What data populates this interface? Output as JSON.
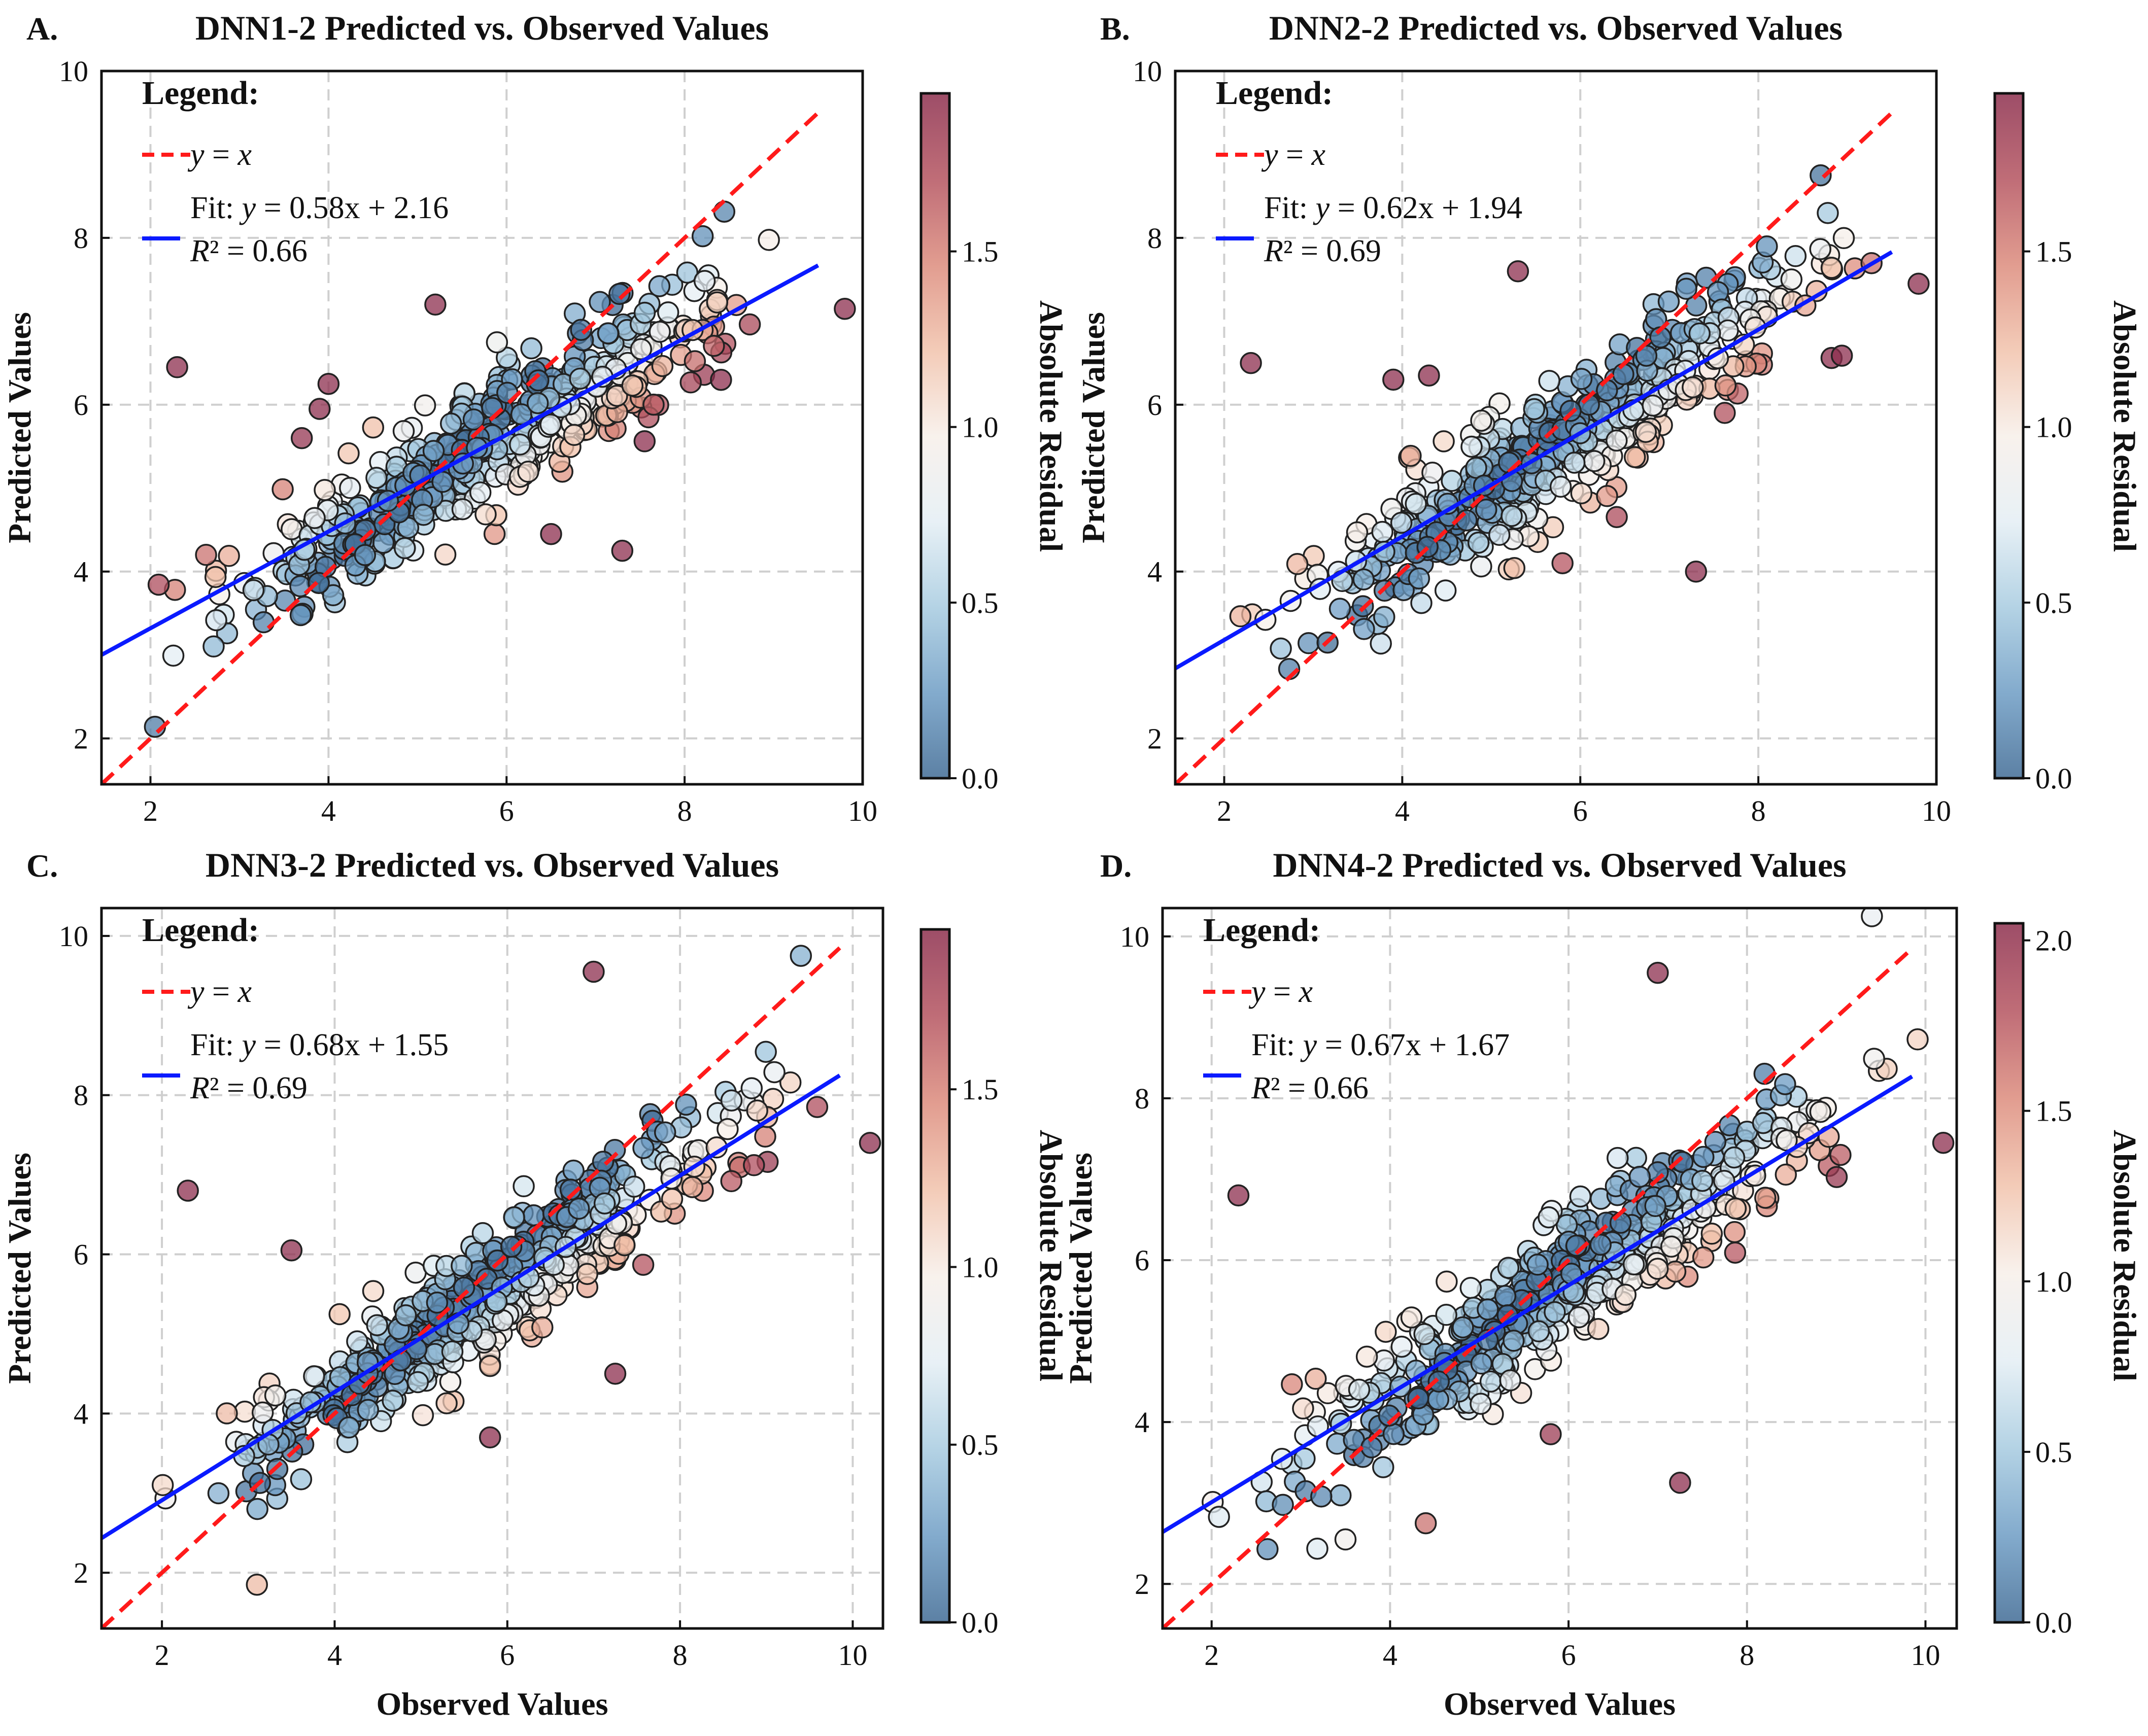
{
  "colorbar_palette": [
    "#3f6a94",
    "#6d9cc4",
    "#a7cbe0",
    "#e4eef4",
    "#f7efe9",
    "#f1c2ab",
    "#dc8b7c",
    "#b4535f",
    "#8c2e4d"
  ],
  "colors": {
    "identity": "#ff1a1a",
    "fit": "#0a1aff",
    "grid": "#cfcfcf"
  },
  "chart_data": [
    {
      "type": "scatter",
      "letter": "A.",
      "title": "DNN1-2 Predicted vs. Observed Values",
      "xlabel": "",
      "ylabel": "Predicted Values",
      "xlim": [
        1.45,
        10.0
      ],
      "ylim": [
        1.45,
        10.0
      ],
      "xticks": [
        "2",
        "4",
        "6",
        "8",
        "10"
      ],
      "yticks": [
        "2",
        "4",
        "6",
        "8",
        "10"
      ],
      "legend": {
        "title": "Legend:",
        "identity_label": "y = x",
        "fit_label": "Fit: y = 0.58x + 2.16",
        "r2_label": "R² = 0.66",
        "position": "top-left"
      },
      "fit": {
        "slope": 0.58,
        "intercept": 2.16
      },
      "identity_xmax": 9.5,
      "colorbar": {
        "label": "Absolute Residual",
        "min": 0.0,
        "max": 1.95,
        "ticks": [
          "0.0",
          "0.5",
          "1.0",
          "1.5"
        ]
      },
      "n_points": 500,
      "seed": 11,
      "x_range": [
        1.7,
        9.8
      ],
      "noise_sd": 0.75,
      "outliers": [
        [
          2.3,
          6.45
        ],
        [
          5.2,
          7.2
        ],
        [
          7.3,
          4.25
        ],
        [
          6.5,
          4.45
        ],
        [
          3.9,
          5.95
        ],
        [
          4.0,
          6.25
        ],
        [
          9.8,
          7.15
        ],
        [
          3.7,
          5.6
        ]
      ]
    },
    {
      "type": "scatter",
      "letter": "B.",
      "title": "DNN2-2 Predicted vs. Observed Values",
      "xlabel": "",
      "ylabel": "Predicted Values",
      "xlim": [
        1.45,
        10.0
      ],
      "ylim": [
        1.45,
        10.0
      ],
      "xticks": [
        "2",
        "4",
        "6",
        "8",
        "10"
      ],
      "yticks": [
        "2",
        "4",
        "6",
        "8",
        "10"
      ],
      "legend": {
        "title": "Legend:",
        "identity_label": "y = x",
        "fit_label": "Fit: y = 0.62x + 1.94",
        "r2_label": "R² = 0.69",
        "position": "top-left"
      },
      "fit": {
        "slope": 0.62,
        "intercept": 1.94
      },
      "identity_xmax": 9.5,
      "colorbar": {
        "label": "Absolute Residual",
        "min": 0.0,
        "max": 1.95,
        "ticks": [
          "0.0",
          "0.5",
          "1.0",
          "1.5"
        ]
      },
      "n_points": 500,
      "seed": 23,
      "x_range": [
        1.7,
        9.8
      ],
      "noise_sd": 0.7,
      "outliers": [
        [
          2.3,
          6.5
        ],
        [
          5.3,
          7.6
        ],
        [
          7.3,
          4.0
        ],
        [
          5.8,
          4.1
        ],
        [
          3.9,
          6.3
        ],
        [
          4.3,
          6.35
        ],
        [
          9.8,
          7.45
        ],
        [
          8.7,
          8.75
        ]
      ]
    },
    {
      "type": "scatter",
      "letter": "C.",
      "title": "DNN3-2 Predicted vs. Observed Values",
      "xlabel": "Observed Values",
      "ylabel": "Predicted Values",
      "xlim": [
        1.3,
        10.35
      ],
      "ylim": [
        1.3,
        10.35
      ],
      "xticks": [
        "2",
        "4",
        "6",
        "8",
        "10"
      ],
      "yticks": [
        "2",
        "4",
        "6",
        "8",
        "10"
      ],
      "legend": {
        "title": "Legend:",
        "identity_label": "y = x",
        "fit_label": "Fit: y = 0.68x + 1.55",
        "r2_label": "R² = 0.69",
        "position": "top-left"
      },
      "fit": {
        "slope": 0.68,
        "intercept": 1.55
      },
      "identity_xmax": 9.85,
      "colorbar": {
        "label": "Absolute Residual",
        "min": 0.0,
        "max": 1.95,
        "ticks": [
          "0.0",
          "0.5",
          "1.0",
          "1.5"
        ]
      },
      "n_points": 500,
      "seed": 37,
      "x_range": [
        1.4,
        10.2
      ],
      "noise_sd": 0.72,
      "outliers": [
        [
          2.3,
          6.8
        ],
        [
          7.0,
          9.55
        ],
        [
          7.25,
          4.5
        ],
        [
          5.8,
          3.7
        ],
        [
          3.5,
          6.05
        ],
        [
          9.4,
          9.75
        ],
        [
          10.2,
          7.4
        ],
        [
          3.1,
          1.85
        ]
      ]
    },
    {
      "type": "scatter",
      "letter": "D.",
      "title": "DNN4-2 Predicted vs. Observed Values",
      "xlabel": "Observed Values",
      "ylabel": "Predicted Values",
      "xlim": [
        1.45,
        10.35
      ],
      "ylim": [
        1.45,
        10.35
      ],
      "xticks": [
        "2",
        "4",
        "6",
        "8",
        "10"
      ],
      "yticks": [
        "2",
        "4",
        "6",
        "8",
        "10"
      ],
      "legend": {
        "title": "Legend:",
        "identity_label": "y = x",
        "fit_label": "Fit: y = 0.67x + 1.67",
        "r2_label": "R² = 0.66",
        "position": "top-left"
      },
      "fit": {
        "slope": 0.67,
        "intercept": 1.67
      },
      "identity_xmax": 9.85,
      "colorbar": {
        "label": "Absolute Residual",
        "min": 0.0,
        "max": 2.05,
        "ticks": [
          "0.0",
          "0.5",
          "1.0",
          "1.5",
          "2.0"
        ]
      },
      "n_points": 500,
      "seed": 53,
      "x_range": [
        1.6,
        10.2
      ],
      "noise_sd": 0.72,
      "outliers": [
        [
          2.3,
          6.8
        ],
        [
          7.0,
          9.55
        ],
        [
          7.25,
          3.25
        ],
        [
          5.8,
          3.85
        ],
        [
          9.4,
          10.25
        ],
        [
          10.2,
          7.45
        ],
        [
          3.5,
          2.55
        ],
        [
          4.4,
          2.75
        ]
      ]
    }
  ]
}
